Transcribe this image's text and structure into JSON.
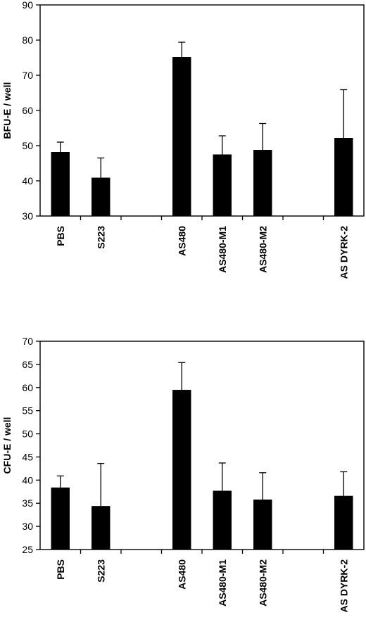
{
  "chart_data": [
    {
      "type": "bar",
      "title": "",
      "xlabel": "",
      "ylabel": "BFU-E / well",
      "ylim": [
        30,
        90
      ],
      "yticks": [
        30,
        40,
        50,
        60,
        70,
        80,
        90
      ],
      "grid": false,
      "legend": "none",
      "bar_color": "#000000",
      "categories": [
        "PBS",
        "S223",
        "AS480",
        "AS480-M1",
        "AS480-M2",
        "AS DYRK-2"
      ],
      "category_slots": [
        0,
        1,
        3,
        4,
        5,
        7
      ],
      "slot_count": 8,
      "values": [
        48.2,
        40.9,
        75.2,
        47.5,
        48.8,
        52.2
      ],
      "error_upper": [
        2.8,
        5.6,
        4.2,
        5.3,
        7.5,
        13.7
      ]
    },
    {
      "type": "bar",
      "title": "",
      "xlabel": "",
      "ylabel": "CFU-E / well",
      "ylim": [
        25,
        70
      ],
      "yticks": [
        25,
        30,
        35,
        40,
        45,
        50,
        55,
        60,
        65,
        70
      ],
      "grid": false,
      "legend": "none",
      "bar_color": "#000000",
      "categories": [
        "PBS",
        "S223",
        "AS480",
        "AS480-M1",
        "AS480-M2",
        "AS DYRK-2"
      ],
      "category_slots": [
        0,
        1,
        3,
        4,
        5,
        7
      ],
      "slot_count": 8,
      "values": [
        38.4,
        34.4,
        59.5,
        37.7,
        35.8,
        36.6
      ],
      "error_upper": [
        2.5,
        9.2,
        5.9,
        6.0,
        5.8,
        5.2
      ]
    }
  ]
}
